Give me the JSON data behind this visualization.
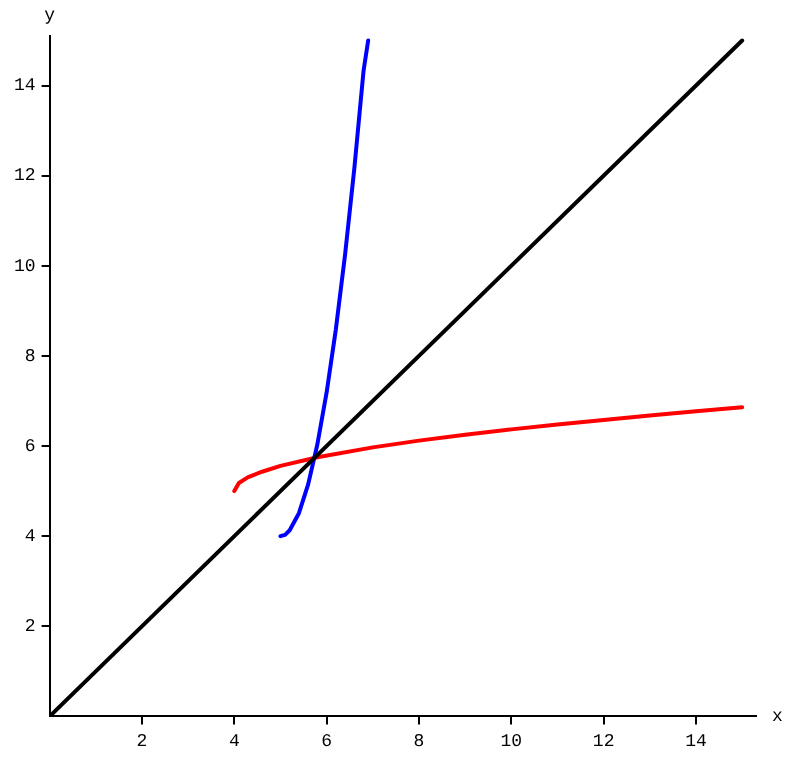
{
  "chart_data": {
    "type": "line",
    "xlabel": "x",
    "ylabel": "y",
    "xlim": [
      0,
      15.3
    ],
    "ylim": [
      0,
      15.1
    ],
    "xticks": [
      2,
      4,
      6,
      8,
      10,
      12,
      14
    ],
    "yticks": [
      2,
      4,
      6,
      8,
      10,
      12,
      14
    ],
    "grid": false,
    "legend": false,
    "marker": "none",
    "line_style": "solid",
    "series": [
      {
        "color": "#000000",
        "x": [
          0,
          15
        ],
        "values": [
          0,
          15
        ]
      },
      {
        "color": "#0000ff",
        "x": [
          5,
          5.1,
          5.2,
          5.4,
          5.6,
          5.8,
          6.0,
          6.2,
          6.4,
          6.6,
          6.8,
          6.9
        ],
        "values": [
          4,
          4.03,
          4.13,
          4.51,
          5.15,
          6.04,
          7.19,
          8.59,
          10.25,
          12.16,
          14.33,
          15
        ]
      },
      {
        "color": "#ff0000",
        "x": [
          4,
          4.1,
          4.3,
          4.6,
          5,
          5.8,
          7,
          8,
          9,
          10,
          11,
          12,
          13,
          14,
          15
        ],
        "values": [
          5,
          5.18,
          5.31,
          5.43,
          5.56,
          5.75,
          5.97,
          6.12,
          6.25,
          6.37,
          6.48,
          6.58,
          6.68,
          6.77,
          6.86
        ]
      }
    ]
  }
}
